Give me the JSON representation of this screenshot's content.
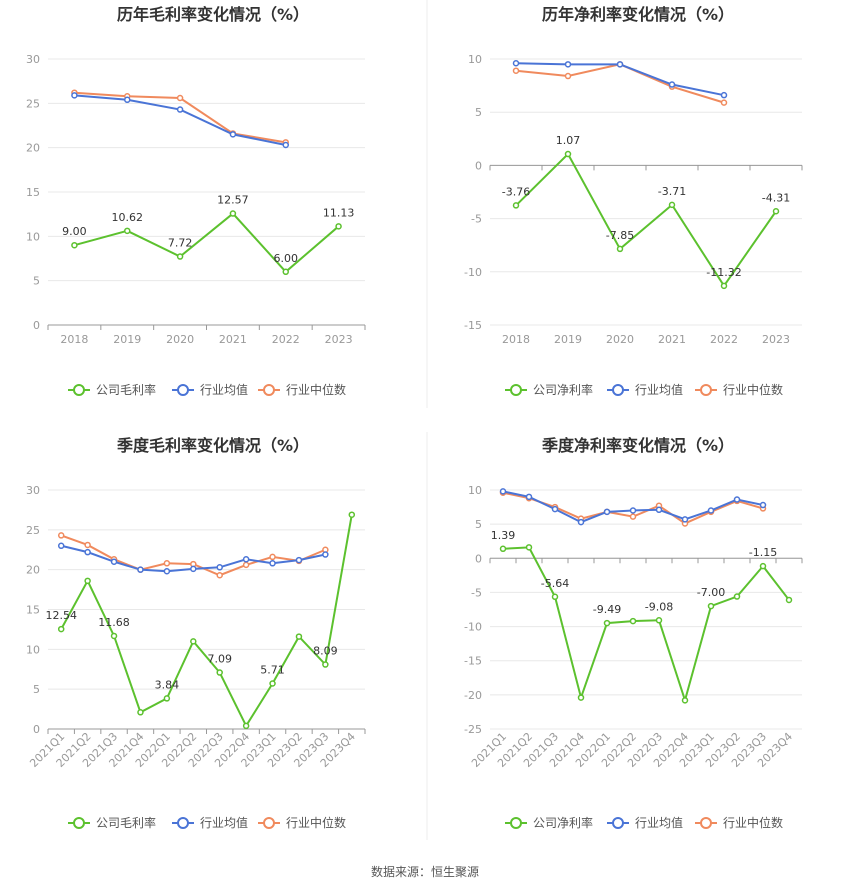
{
  "source_text": "数据来源：恒生聚源",
  "legend_colors": {
    "company": "#5cc12e",
    "avg": "#4a74d6",
    "median": "#f08a5d"
  },
  "chart_data": [
    {
      "type": "line",
      "title": "历年毛利率变化情况（%）",
      "categories": [
        "2018",
        "2019",
        "2020",
        "2021",
        "2022",
        "2023"
      ],
      "ylim": [
        0,
        30
      ],
      "yticks": [
        0,
        5,
        10,
        15,
        20,
        25,
        30
      ],
      "grid": true,
      "legend": "bottom",
      "series": [
        {
          "name": "公司毛利率",
          "values": [
            9.0,
            10.62,
            7.72,
            12.57,
            6.0,
            11.13
          ],
          "labels": [
            "9.00",
            "10.62",
            "7.72",
            "12.57",
            "6.00",
            "11.13"
          ]
        },
        {
          "name": "行业均值",
          "values": [
            25.9,
            25.4,
            24.3,
            21.5,
            20.3,
            null
          ]
        },
        {
          "name": "行业中位数",
          "values": [
            26.2,
            25.8,
            25.6,
            21.6,
            20.6,
            null
          ]
        }
      ]
    },
    {
      "type": "line",
      "title": "历年净利率变化情况（%）",
      "categories": [
        "2018",
        "2019",
        "2020",
        "2021",
        "2022",
        "2023"
      ],
      "ylim": [
        -15,
        10
      ],
      "yticks": [
        -15,
        -10,
        -5,
        0,
        5,
        10
      ],
      "grid": true,
      "legend": "bottom",
      "series": [
        {
          "name": "公司净利率",
          "values": [
            -3.76,
            1.07,
            -7.85,
            -3.71,
            -11.32,
            -4.31
          ],
          "labels": [
            "-3.76",
            "1.07",
            "-7.85",
            "-3.71",
            "-11.32",
            "-4.31"
          ]
        },
        {
          "name": "行业均值",
          "values": [
            9.6,
            9.5,
            9.5,
            7.6,
            6.6,
            null
          ]
        },
        {
          "name": "行业中位数",
          "values": [
            8.9,
            8.4,
            9.5,
            7.4,
            5.9,
            null
          ]
        }
      ]
    },
    {
      "type": "line",
      "title": "季度毛利率变化情况（%）",
      "categories": [
        "2021Q1",
        "2021Q2",
        "2021Q3",
        "2021Q4",
        "2022Q1",
        "2022Q2",
        "2022Q3",
        "2022Q4",
        "2023Q1",
        "2023Q2",
        "2023Q3",
        "2023Q4"
      ],
      "ylim": [
        0,
        30
      ],
      "yticks": [
        0,
        5,
        10,
        15,
        20,
        25,
        30
      ],
      "grid": true,
      "legend": "bottom",
      "series": [
        {
          "name": "公司毛利率",
          "values": [
            12.54,
            18.6,
            11.68,
            2.1,
            3.84,
            11.0,
            7.09,
            0.4,
            5.71,
            11.6,
            8.09,
            26.9
          ],
          "labels": [
            "12.54",
            "",
            "11.68",
            "",
            "3.84",
            "",
            "7.09",
            "",
            "5.71",
            "",
            "8.09",
            ""
          ]
        },
        {
          "name": "行业均值",
          "values": [
            23.0,
            22.2,
            21.0,
            20.0,
            19.8,
            20.1,
            20.3,
            21.3,
            20.8,
            21.2,
            21.9,
            null
          ]
        },
        {
          "name": "行业中位数",
          "values": [
            24.3,
            23.1,
            21.3,
            20.0,
            20.8,
            20.7,
            19.3,
            20.6,
            21.6,
            21.1,
            22.5,
            null
          ]
        }
      ]
    },
    {
      "type": "line",
      "title": "季度净利率变化情况（%）",
      "categories": [
        "2021Q1",
        "2021Q2",
        "2021Q3",
        "2021Q4",
        "2022Q1",
        "2022Q2",
        "2022Q3",
        "2022Q4",
        "2023Q1",
        "2023Q2",
        "2023Q3",
        "2023Q4"
      ],
      "ylim": [
        -25,
        10
      ],
      "yticks": [
        -25,
        -20,
        -15,
        -10,
        -5,
        0,
        5,
        10
      ],
      "grid": true,
      "legend": "bottom",
      "series": [
        {
          "name": "公司净利率",
          "values": [
            1.39,
            1.6,
            -5.64,
            -20.4,
            -9.49,
            -9.2,
            -9.08,
            -20.8,
            -7.0,
            -5.6,
            -1.15,
            -6.1
          ],
          "labels": [
            "1.39",
            "",
            "-5.64",
            "",
            "-9.49",
            "",
            "-9.08",
            "",
            "-7.00",
            "",
            "-1.15",
            ""
          ]
        },
        {
          "name": "行业均值",
          "values": [
            9.8,
            9.0,
            7.2,
            5.3,
            6.8,
            7.0,
            7.1,
            5.7,
            7.0,
            8.6,
            7.8,
            null
          ]
        },
        {
          "name": "行业中位数",
          "values": [
            9.6,
            8.8,
            7.5,
            5.8,
            6.8,
            6.1,
            7.7,
            5.1,
            6.8,
            8.4,
            7.3,
            null
          ]
        }
      ]
    }
  ]
}
